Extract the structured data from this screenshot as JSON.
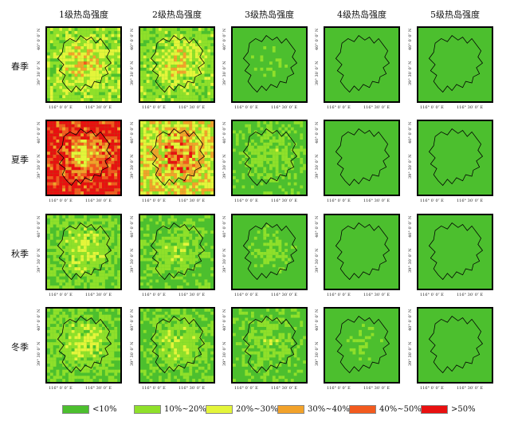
{
  "columns": [
    "1级热岛强度",
    "2级热岛强度",
    "3级热岛强度",
    "4级热岛强度",
    "5级热岛强度"
  ],
  "rows": [
    "春季",
    "夏季",
    "秋季",
    "冬季"
  ],
  "x_ticks": [
    "116° 0′ 0″ E",
    "116° 30′ 0″ E"
  ],
  "y_ticks": [
    "40° 0′ 0″ N",
    "39° 30′ 0″ N"
  ],
  "legend": [
    {
      "label": "<10%",
      "color": "#4cbf2e"
    },
    {
      "label": "10%~20%",
      "color": "#8fe02a"
    },
    {
      "label": "20%~30%",
      "color": "#e4f53a"
    },
    {
      "label": "30%~40%",
      "color": "#f2a22a"
    },
    {
      "label": "40%~50%",
      "color": "#f25a1e"
    },
    {
      "label": ">50%",
      "color": "#e81010"
    }
  ],
  "intensity": [
    [
      0.45,
      0.4,
      0.12,
      0.05,
      0.04
    ],
    [
      0.95,
      0.8,
      0.2,
      0.06,
      0.04
    ],
    [
      0.3,
      0.22,
      0.14,
      0.06,
      0.05
    ],
    [
      0.28,
      0.25,
      0.2,
      0.12,
      0.08
    ]
  ]
}
